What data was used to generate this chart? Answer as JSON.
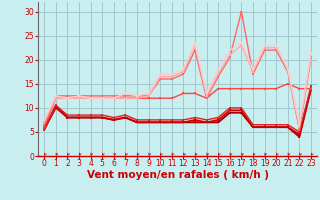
{
  "xlabel": "Vent moyen/en rafales ( km/h )",
  "xlim": [
    -0.5,
    23.5
  ],
  "ylim": [
    0,
    32
  ],
  "yticks": [
    0,
    5,
    10,
    15,
    20,
    25,
    30
  ],
  "xticks": [
    0,
    1,
    2,
    3,
    4,
    5,
    6,
    7,
    8,
    9,
    10,
    11,
    12,
    13,
    14,
    15,
    16,
    17,
    18,
    19,
    20,
    21,
    22,
    23
  ],
  "bg_color": "#c8eef0",
  "grid_color": "#a0c8cc",
  "lines": [
    {
      "x": [
        0,
        1,
        2,
        3,
        4,
        5,
        6,
        7,
        8,
        9,
        10,
        11,
        12,
        13,
        14,
        15,
        16,
        17,
        18,
        19,
        20,
        21,
        22,
        23
      ],
      "y": [
        5.5,
        10.5,
        8,
        8,
        8,
        8,
        7.5,
        8,
        7,
        7,
        7,
        7,
        7,
        7,
        7,
        7,
        9,
        9,
        6,
        6,
        6,
        6,
        4,
        14
      ],
      "color": "#aa0000",
      "lw": 1.4,
      "marker": "s",
      "ms": 2.0
    },
    {
      "x": [
        0,
        1,
        2,
        3,
        4,
        5,
        6,
        7,
        8,
        9,
        10,
        11,
        12,
        13,
        14,
        15,
        16,
        17,
        18,
        19,
        20,
        21,
        22,
        23
      ],
      "y": [
        5.5,
        10,
        8,
        8,
        8,
        8,
        7.5,
        8,
        7,
        7,
        7,
        7,
        7,
        7.5,
        7,
        7.5,
        9.5,
        9.5,
        6,
        6,
        6,
        6,
        4.5,
        14
      ],
      "color": "#cc0000",
      "lw": 1.2,
      "marker": "s",
      "ms": 2.0
    },
    {
      "x": [
        0,
        1,
        2,
        3,
        4,
        5,
        6,
        7,
        8,
        9,
        10,
        11,
        12,
        13,
        14,
        15,
        16,
        17,
        18,
        19,
        20,
        21,
        22,
        23
      ],
      "y": [
        5.5,
        10.5,
        8.5,
        8.5,
        8.5,
        8.5,
        8,
        8.5,
        7.5,
        7.5,
        7.5,
        7.5,
        7.5,
        8,
        7.5,
        8,
        10,
        10,
        6.5,
        6.5,
        6.5,
        6.5,
        5,
        14.5
      ],
      "color": "#dd2222",
      "lw": 1.0,
      "marker": "s",
      "ms": 1.8
    },
    {
      "x": [
        0,
        1,
        2,
        3,
        4,
        5,
        6,
        7,
        8,
        9,
        10,
        11,
        12,
        13,
        14,
        15,
        16,
        17,
        18,
        19,
        20,
        21,
        22,
        23
      ],
      "y": [
        6,
        12,
        12,
        12,
        12,
        12,
        12,
        12,
        12,
        12,
        12,
        12,
        13,
        13,
        12,
        14,
        14,
        14,
        14,
        14,
        14,
        15,
        14,
        14
      ],
      "color": "#ff4444",
      "lw": 1.0,
      "marker": "s",
      "ms": 1.8
    },
    {
      "x": [
        0,
        1,
        2,
        3,
        4,
        5,
        6,
        7,
        8,
        9,
        10,
        11,
        12,
        13,
        14,
        15,
        16,
        17,
        18,
        19,
        20,
        21,
        22,
        23
      ],
      "y": [
        6.5,
        12.5,
        12.5,
        12.5,
        12.5,
        12.5,
        12.5,
        12.5,
        12.5,
        12.5,
        16,
        16,
        17,
        22,
        12,
        16.5,
        20.5,
        30,
        17,
        22,
        22,
        17.5,
        5.5,
        20.5
      ],
      "color": "#ff6666",
      "lw": 1.0,
      "marker": "s",
      "ms": 1.8
    },
    {
      "x": [
        0,
        1,
        2,
        3,
        4,
        5,
        6,
        7,
        8,
        9,
        10,
        11,
        12,
        13,
        14,
        15,
        16,
        17,
        18,
        19,
        20,
        21,
        22,
        23
      ],
      "y": [
        7,
        12,
        12,
        12,
        12,
        12,
        12,
        12,
        12,
        12.5,
        16.5,
        16.5,
        17.5,
        23,
        12.5,
        17,
        21,
        23,
        17.5,
        22.5,
        22.5,
        18,
        6,
        21
      ],
      "color": "#ffaaaa",
      "lw": 1.0,
      "marker": "s",
      "ms": 1.8
    },
    {
      "x": [
        0,
        1,
        2,
        3,
        4,
        5,
        6,
        7,
        8,
        9,
        10,
        11,
        12,
        13,
        14,
        15,
        16,
        17,
        18,
        19,
        20,
        21,
        22,
        23
      ],
      "y": [
        7.5,
        12.5,
        12,
        12.5,
        12,
        12,
        12,
        13,
        12.5,
        13,
        17,
        17,
        18,
        23.5,
        13,
        18,
        22,
        23.5,
        18,
        23,
        23,
        18,
        6.5,
        21.5
      ],
      "color": "#ffcccc",
      "lw": 1.0,
      "marker": "s",
      "ms": 1.8
    }
  ],
  "tick_color": "#cc0000",
  "label_color": "#cc0000",
  "tick_fontsize": 5.5,
  "xlabel_fontsize": 7.5
}
